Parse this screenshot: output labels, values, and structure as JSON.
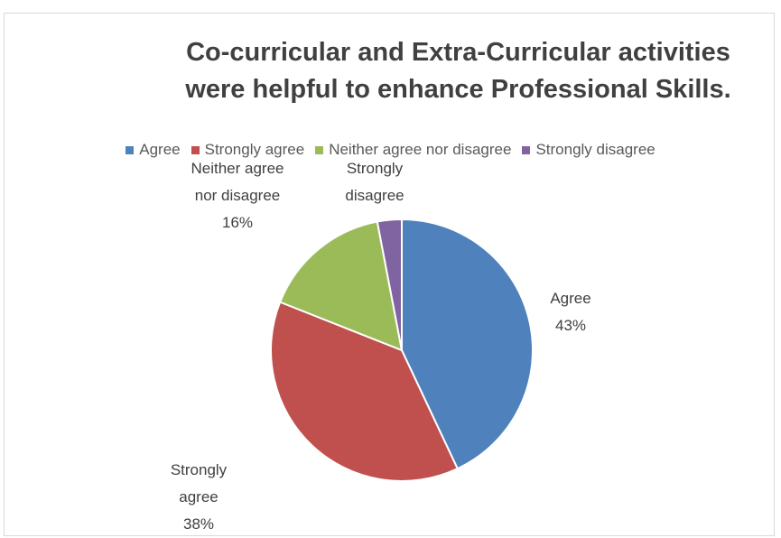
{
  "chart_data": {
    "type": "pie",
    "title": "Co-curricular and Extra-Curricular activities\nwere helpful to enhance Professional Skills.",
    "categories": [
      "Agree",
      "Strongly agree",
      "Neither agree nor disagree",
      "Strongly disagree"
    ],
    "values": [
      43,
      38,
      16,
      3
    ],
    "colors": [
      "#4f81bd",
      "#c0504d",
      "#9bbb59",
      "#8064a2"
    ],
    "legend_position": "top",
    "data_labels": [
      {
        "category": "Agree",
        "text": "Agree\n43%"
      },
      {
        "category": "Strongly agree",
        "text": "Strongly\nagree\n38%"
      },
      {
        "category": "Neither agree nor disagree",
        "text": "Neither agree\nnor disagree\n16%"
      },
      {
        "category": "Strongly disagree",
        "text": "Strongly\ndisagree"
      }
    ]
  }
}
